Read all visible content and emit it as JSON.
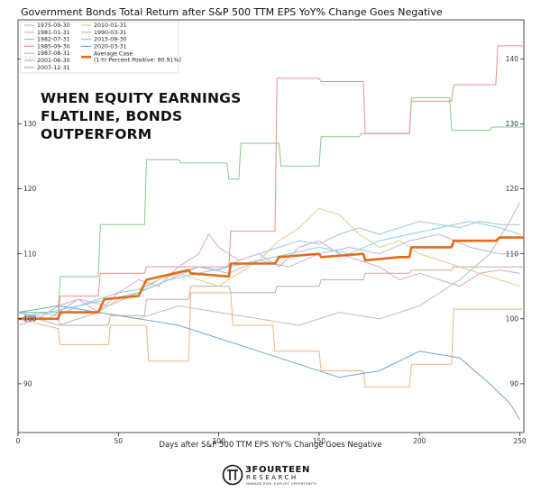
{
  "chart_data": {
    "type": "line",
    "title": "Government Bonds Total Return after S&P 500 TTM EPS YoY% Change Goes Negative",
    "xlabel": "Days after S&P 500 TTM EPS YoY% Change Goes Negative",
    "ylabel": "",
    "xlim": [
      0,
      252
    ],
    "ylim": [
      82.5,
      146
    ],
    "x_ticks": [
      0,
      50,
      100,
      150,
      200,
      250
    ],
    "y_ticks": [
      90,
      100,
      110,
      120,
      130,
      140
    ],
    "y_ticks_both_sides": true,
    "grid": false,
    "legend_placement": "top-left",
    "annotation": [
      "WHEN EQUITY EARNINGS",
      "FLATLINE, BONDS",
      "OUTPERFORM"
    ],
    "series": [
      {
        "name": "1975-09-30",
        "color": "#9bc4dc",
        "points": [
          [
            0,
            100
          ],
          [
            10,
            101
          ],
          [
            20,
            100.5
          ],
          [
            30,
            102
          ],
          [
            40,
            103
          ],
          [
            50,
            104
          ],
          [
            60,
            104.5
          ],
          [
            70,
            106
          ],
          [
            80,
            107
          ],
          [
            90,
            108
          ],
          [
            100,
            107.5
          ],
          [
            110,
            109
          ],
          [
            120,
            110
          ],
          [
            130,
            111
          ],
          [
            140,
            112
          ],
          [
            150,
            111.5
          ],
          [
            160,
            113
          ],
          [
            170,
            114
          ],
          [
            180,
            113
          ],
          [
            190,
            114
          ],
          [
            200,
            115
          ],
          [
            210,
            114.5
          ],
          [
            220,
            114
          ],
          [
            230,
            115
          ],
          [
            240,
            114.5
          ],
          [
            250,
            114.5
          ]
        ]
      },
      {
        "name": "1981-01-31",
        "color": "#f2b184",
        "points": [
          [
            0,
            100
          ],
          [
            20,
            98.5
          ],
          [
            21,
            96
          ],
          [
            45,
            96
          ],
          [
            46,
            99
          ],
          [
            64,
            99
          ],
          [
            65,
            93.5
          ],
          [
            85,
            93.5
          ],
          [
            86,
            104
          ],
          [
            106,
            104
          ],
          [
            107,
            99
          ],
          [
            127,
            99
          ],
          [
            128,
            95
          ],
          [
            150,
            95
          ],
          [
            151,
            92
          ],
          [
            172,
            92
          ],
          [
            173,
            89.5
          ],
          [
            195,
            89.5
          ],
          [
            196,
            93
          ],
          [
            216,
            93
          ],
          [
            217,
            101.5
          ],
          [
            240,
            101.5
          ],
          [
            241,
            101.5
          ],
          [
            252,
            101.5
          ]
        ]
      },
      {
        "name": "1982-07-31",
        "color": "#86c98a",
        "points": [
          [
            0,
            101
          ],
          [
            20,
            101
          ],
          [
            21,
            106.5
          ],
          [
            40,
            106.5
          ],
          [
            41,
            114.5
          ],
          [
            63,
            114.5
          ],
          [
            64,
            124.5
          ],
          [
            80,
            124.5
          ],
          [
            81,
            124
          ],
          [
            104,
            124
          ],
          [
            105,
            121.5
          ],
          [
            110,
            121.5
          ],
          [
            111,
            127
          ],
          [
            130,
            127
          ],
          [
            131,
            123.5
          ],
          [
            150,
            123.5
          ],
          [
            151,
            128
          ],
          [
            170,
            128
          ],
          [
            171,
            128.5
          ],
          [
            195,
            128.5
          ],
          [
            196,
            134
          ],
          [
            215,
            134
          ],
          [
            216,
            129
          ],
          [
            235,
            129
          ],
          [
            236,
            129.5
          ],
          [
            252,
            129.5
          ]
        ]
      },
      {
        "name": "1985-09-30",
        "color": "#ea8f8f",
        "points": [
          [
            0,
            100
          ],
          [
            20,
            100
          ],
          [
            21,
            103.5
          ],
          [
            40,
            103.5
          ],
          [
            41,
            107
          ],
          [
            63,
            107
          ],
          [
            64,
            108
          ],
          [
            85,
            108
          ],
          [
            86,
            108
          ],
          [
            105,
            108
          ],
          [
            106,
            113.5
          ],
          [
            128,
            113.5
          ],
          [
            129,
            137
          ],
          [
            150,
            137
          ],
          [
            151,
            136.5
          ],
          [
            172,
            136.5
          ],
          [
            173,
            128.5
          ],
          [
            195,
            128.5
          ],
          [
            196,
            133.5
          ],
          [
            216,
            133.5
          ],
          [
            217,
            136
          ],
          [
            238,
            136
          ],
          [
            239,
            142
          ],
          [
            252,
            142
          ]
        ]
      },
      {
        "name": "1987-08-31",
        "color": "#d9a6d4",
        "points": [
          [
            0,
            99
          ],
          [
            10,
            100
          ],
          [
            20,
            102
          ],
          [
            30,
            103
          ],
          [
            40,
            101
          ],
          [
            50,
            104
          ],
          [
            60,
            106
          ],
          [
            70,
            105
          ],
          [
            80,
            108
          ],
          [
            90,
            110
          ],
          [
            95,
            113
          ],
          [
            100,
            111
          ],
          [
            110,
            109
          ],
          [
            120,
            110
          ],
          [
            130,
            108
          ],
          [
            140,
            111
          ],
          [
            150,
            112
          ],
          [
            160,
            110
          ],
          [
            170,
            109
          ],
          [
            180,
            108
          ],
          [
            190,
            106
          ],
          [
            200,
            107
          ],
          [
            210,
            106
          ],
          [
            220,
            105
          ],
          [
            230,
            107
          ],
          [
            240,
            107.5
          ],
          [
            250,
            107
          ]
        ]
      },
      {
        "name": "2001-06-30",
        "color": "#c6b1de",
        "points": [
          [
            0,
            101
          ],
          [
            15,
            100
          ],
          [
            30,
            103
          ],
          [
            45,
            102
          ],
          [
            60,
            104
          ],
          [
            75,
            106
          ],
          [
            90,
            108
          ],
          [
            105,
            107
          ],
          [
            120,
            109
          ],
          [
            135,
            108
          ],
          [
            150,
            110
          ],
          [
            165,
            111
          ],
          [
            180,
            110
          ],
          [
            195,
            112
          ],
          [
            210,
            113
          ],
          [
            225,
            111
          ],
          [
            240,
            110
          ],
          [
            250,
            110
          ]
        ]
      },
      {
        "name": "2007-12-31",
        "color": "#c7a89f",
        "points": [
          [
            0,
            100
          ],
          [
            20,
            100
          ],
          [
            21,
            99
          ],
          [
            45,
            99
          ],
          [
            46,
            100.5
          ],
          [
            63,
            100.5
          ],
          [
            64,
            103
          ],
          [
            85,
            103
          ],
          [
            86,
            105
          ],
          [
            105,
            105
          ],
          [
            106,
            104
          ],
          [
            128,
            104
          ],
          [
            129,
            105
          ],
          [
            150,
            105
          ],
          [
            151,
            106
          ],
          [
            172,
            106
          ],
          [
            173,
            107
          ],
          [
            195,
            107
          ],
          [
            196,
            107.5
          ],
          [
            216,
            107.5
          ],
          [
            217,
            108
          ],
          [
            240,
            108
          ],
          [
            241,
            108
          ],
          [
            252,
            108
          ]
        ]
      },
      {
        "name": "2010-01-31",
        "color": "#d8cf86",
        "points": [
          [
            0,
            101
          ],
          [
            10,
            100
          ],
          [
            20,
            99
          ],
          [
            30,
            100
          ],
          [
            40,
            101
          ],
          [
            50,
            103
          ],
          [
            60,
            104
          ],
          [
            70,
            106
          ],
          [
            80,
            107
          ],
          [
            90,
            106
          ],
          [
            100,
            105
          ],
          [
            110,
            107
          ],
          [
            120,
            109
          ],
          [
            130,
            112
          ],
          [
            140,
            114
          ],
          [
            150,
            117
          ],
          [
            160,
            116
          ],
          [
            170,
            113
          ],
          [
            180,
            111
          ],
          [
            190,
            112
          ],
          [
            200,
            110
          ],
          [
            210,
            109
          ],
          [
            220,
            108
          ],
          [
            230,
            107
          ],
          [
            240,
            106
          ],
          [
            250,
            105
          ]
        ]
      },
      {
        "name": "1990-03-31",
        "color": "#bdbdbd",
        "points": [
          [
            0,
            101
          ],
          [
            20,
            99
          ],
          [
            40,
            101
          ],
          [
            60,
            100
          ],
          [
            80,
            102
          ],
          [
            100,
            101
          ],
          [
            120,
            100
          ],
          [
            140,
            99
          ],
          [
            160,
            101
          ],
          [
            180,
            100
          ],
          [
            200,
            102
          ],
          [
            220,
            106
          ],
          [
            235,
            110
          ],
          [
            245,
            115
          ],
          [
            250,
            118
          ]
        ]
      },
      {
        "name": "2015-09-30",
        "color": "#7fd3e0",
        "points": [
          [
            0,
            100
          ],
          [
            15,
            101
          ],
          [
            30,
            102
          ],
          [
            45,
            103
          ],
          [
            60,
            104
          ],
          [
            75,
            106
          ],
          [
            90,
            107
          ],
          [
            105,
            108
          ],
          [
            120,
            109
          ],
          [
            135,
            110
          ],
          [
            150,
            111
          ],
          [
            165,
            110
          ],
          [
            180,
            112
          ],
          [
            195,
            113
          ],
          [
            210,
            114
          ],
          [
            225,
            115
          ],
          [
            240,
            114
          ],
          [
            250,
            113
          ]
        ]
      },
      {
        "name": "2020-03-31",
        "color": "#6fa5cf",
        "points": [
          [
            0,
            101
          ],
          [
            20,
            102
          ],
          [
            40,
            101
          ],
          [
            60,
            100
          ],
          [
            80,
            99
          ],
          [
            100,
            97
          ],
          [
            120,
            95
          ],
          [
            140,
            93
          ],
          [
            160,
            91
          ],
          [
            180,
            92
          ],
          [
            200,
            95
          ],
          [
            220,
            94
          ],
          [
            235,
            90
          ],
          [
            245,
            87
          ],
          [
            250,
            84.5
          ]
        ]
      },
      {
        "name": "Average Case",
        "label_line2": "(1-Yr Percent Positive: 90.91%)",
        "color": "#e46c1b",
        "bold": true,
        "points": [
          [
            0,
            100
          ],
          [
            20,
            100
          ],
          [
            21,
            101
          ],
          [
            40,
            101
          ],
          [
            43,
            103
          ],
          [
            60,
            103.5
          ],
          [
            64,
            106
          ],
          [
            85,
            107.5
          ],
          [
            86,
            107
          ],
          [
            105,
            106.5
          ],
          [
            106,
            108.5
          ],
          [
            128,
            108.5
          ],
          [
            130,
            109.5
          ],
          [
            150,
            110
          ],
          [
            151,
            109.5
          ],
          [
            172,
            110
          ],
          [
            173,
            109
          ],
          [
            190,
            109.5
          ],
          [
            195,
            109.5
          ],
          [
            196,
            111
          ],
          [
            216,
            111
          ],
          [
            217,
            112
          ],
          [
            238,
            112
          ],
          [
            240,
            112.5
          ],
          [
            252,
            112.5
          ]
        ]
      }
    ]
  },
  "branding": {
    "name": "3FOURTEEN",
    "sub": "RESEARCH",
    "tagline": "MANAGE RISK. EXPLOIT OPPORTUNITY."
  }
}
